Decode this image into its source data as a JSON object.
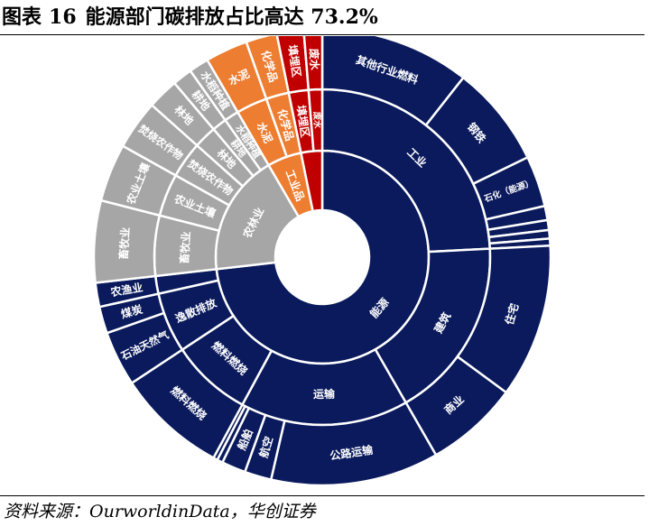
{
  "figure": {
    "label": "图表",
    "number": "16",
    "title": "能源部门碳排放占比高达 73.2%",
    "source": "资料来源：OurworldinData，华创证券"
  },
  "colors": {
    "energy": "#0a1a5c",
    "agriculture": "#a6a6a6",
    "industry": "#ed7d31",
    "waste": "#c00000",
    "border": "#ffffff",
    "label": "#ffffff"
  },
  "chart_data": {
    "type": "sunburst",
    "unit": "%",
    "sectors": [
      {
        "label": "能源",
        "value": 73.2,
        "color_key": "energy",
        "children": [
          {
            "label": "工业",
            "value": 24.2,
            "children": [
              {
                "label": "其他行业燃料",
                "value": 10.6
              },
              {
                "label": "钢铁",
                "value": 7.2
              },
              {
                "label": "石化（能源）",
                "value": 3.6
              },
              {
                "label": "",
                "value": 1.0
              },
              {
                "label": "",
                "value": 0.7
              },
              {
                "label": "",
                "value": 0.6
              },
              {
                "label": "",
                "value": 0.5
              }
            ]
          },
          {
            "label": "建筑",
            "value": 17.5,
            "children": [
              {
                "label": "住宅",
                "value": 10.9
              },
              {
                "label": "商业",
                "value": 6.6
              }
            ]
          },
          {
            "label": "运输",
            "value": 16.2,
            "children": [
              {
                "label": "公路运输",
                "value": 11.9
              },
              {
                "label": "航空",
                "value": 1.9
              },
              {
                "label": "船舶",
                "value": 1.7
              },
              {
                "label": "",
                "value": 0.4
              },
              {
                "label": "",
                "value": 0.3
              }
            ]
          },
          {
            "label": "燃料燃烧",
            "value": 7.8,
            "children": [
              {
                "label": "燃料燃烧",
                "value": 7.8
              }
            ]
          },
          {
            "label": "逸散排放",
            "value": 5.8,
            "children": [
              {
                "label": "石油天然气",
                "value": 3.9
              },
              {
                "label": "煤炭",
                "value": 1.9
              }
            ]
          },
          {
            "label": "",
            "value": 1.7,
            "children": [
              {
                "label": "农渔业",
                "value": 1.7
              }
            ]
          }
        ]
      },
      {
        "label": "农林业",
        "value": 18.4,
        "color_key": "agriculture",
        "children": [
          {
            "label": "畜牧业",
            "value": 5.8,
            "children": [
              {
                "label": "畜牧业",
                "value": 5.8
              }
            ]
          },
          {
            "label": "农业土壤",
            "value": 4.1,
            "children": [
              {
                "label": "农业土壤",
                "value": 4.1
              }
            ]
          },
          {
            "label": "焚烧农作物",
            "value": 3.5,
            "children": [
              {
                "label": "焚烧农作物",
                "value": 3.5
              }
            ]
          },
          {
            "label": "林地",
            "value": 2.2,
            "children": [
              {
                "label": "林地",
                "value": 2.2
              }
            ]
          },
          {
            "label": "耕地",
            "value": 1.4,
            "children": [
              {
                "label": "耕地",
                "value": 1.4
              }
            ]
          },
          {
            "label": "水稻种植",
            "value": 1.4,
            "children": [
              {
                "label": "水稻种植",
                "value": 1.4
              }
            ]
          }
        ]
      },
      {
        "label": "工业品",
        "value": 5.2,
        "color_key": "industry",
        "children": [
          {
            "label": "水泥",
            "value": 3.0,
            "children": [
              {
                "label": "水泥",
                "value": 3.0
              }
            ]
          },
          {
            "label": "化学品",
            "value": 2.2,
            "children": [
              {
                "label": "化学品",
                "value": 2.2
              }
            ]
          }
        ]
      },
      {
        "label": "",
        "value": 3.2,
        "color_key": "waste",
        "children": [
          {
            "label": "填埋区",
            "value": 1.9,
            "children": [
              {
                "label": "填埋区",
                "value": 1.9
              }
            ]
          },
          {
            "label": "废水",
            "value": 1.3,
            "children": [
              {
                "label": "废水",
                "value": 1.3
              }
            ]
          }
        ]
      }
    ]
  }
}
